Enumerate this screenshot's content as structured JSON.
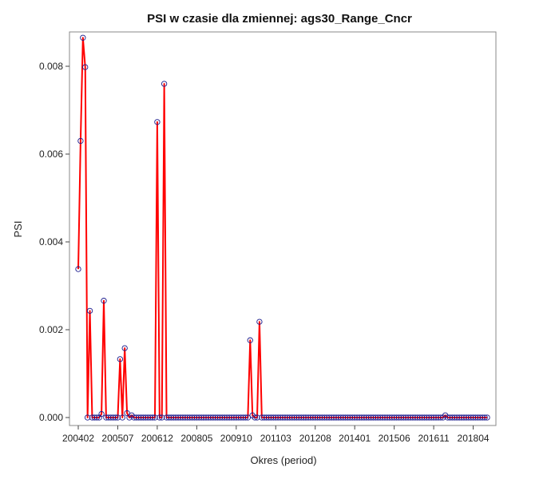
{
  "chart_data": {
    "type": "line",
    "title": "PSI w czasie dla zmiennej: ags30_Range_Cncr",
    "xlabel": "Okres (period)",
    "ylabel": "PSI",
    "xtick_labels": [
      "200402",
      "200507",
      "200612",
      "200805",
      "200910",
      "201103",
      "201208",
      "201401",
      "201506",
      "201611",
      "201804"
    ],
    "yticks": [
      "0.000",
      "0.002",
      "0.004",
      "0.006",
      "0.008"
    ],
    "ylim": [
      0,
      0.0088
    ],
    "grid": false,
    "line_color": "#ff0000",
    "marker_color": "#1a1a8c",
    "x_start": "200402",
    "x_end": "201806",
    "x_step": "1 month",
    "values": [
      0.00338,
      0.0063,
      0.00865,
      0.00798,
      0.0,
      0.00243,
      0.0,
      0.0,
      0.0,
      0.0,
      8e-05,
      0.00266,
      0.0,
      0.0,
      0.0,
      0.0,
      0.0,
      0.0,
      0.00133,
      0.0,
      0.00158,
      0.0001,
      0.0,
      5e-05,
      0.0,
      0.0,
      0.0,
      0.0,
      0.0,
      0.0,
      0.0,
      0.0,
      0.0,
      0.0,
      0.00673,
      0.0,
      0.0,
      0.0076,
      0.0,
      0.0,
      0.0,
      0.0,
      0.0,
      0.0,
      0.0,
      0.0,
      0.0,
      0.0,
      0.0,
      0.0,
      0.0,
      0.0,
      0.0,
      0.0,
      0.0,
      0.0,
      0.0,
      0.0,
      0.0,
      0.0,
      0.0,
      0.0,
      0.0,
      0.0,
      0.0,
      0.0,
      0.0,
      0.0,
      0.0,
      0.0,
      0.0,
      0.0,
      0.0,
      0.0,
      0.00176,
      5e-05,
      0.0,
      0.0,
      0.00218,
      0.0,
      0.0,
      0.0,
      0.0,
      0.0,
      0.0,
      0.0,
      0.0,
      0.0,
      0.0,
      0.0,
      0.0,
      0.0,
      0.0,
      0.0,
      0.0,
      0.0,
      0.0,
      0.0,
      0.0,
      0.0,
      0.0,
      0.0,
      0.0,
      0.0,
      0.0,
      0.0,
      0.0,
      0.0,
      0.0,
      0.0,
      0.0,
      0.0,
      0.0,
      0.0,
      0.0,
      0.0,
      0.0,
      0.0,
      0.0,
      0.0,
      0.0,
      0.0,
      0.0,
      0.0,
      0.0,
      0.0,
      0.0,
      0.0,
      0.0,
      0.0,
      0.0,
      0.0,
      0.0,
      0.0,
      0.0,
      0.0,
      0.0,
      0.0,
      0.0,
      0.0,
      0.0,
      0.0,
      0.0,
      0.0,
      0.0,
      0.0,
      0.0,
      0.0,
      0.0,
      0.0,
      0.0,
      0.0,
      0.0,
      0.0,
      0.0,
      0.0,
      0.0,
      0.0,
      5e-05,
      0.0,
      0.0,
      0.0,
      0.0,
      0.0,
      0.0,
      0.0,
      0.0,
      0.0,
      0.0,
      0.0,
      0.0,
      0.0,
      0.0,
      0.0,
      0.0,
      0.0,
      0.0
    ]
  }
}
